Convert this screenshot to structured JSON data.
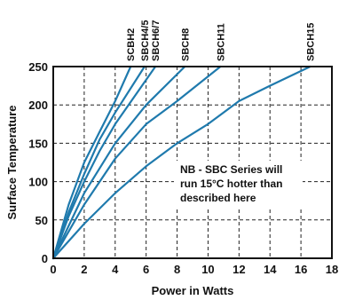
{
  "chart_data": {
    "type": "line",
    "xlabel": "Power in Watts",
    "ylabel": "Surface Temperature",
    "xlim": [
      0,
      18
    ],
    "ylim": [
      0,
      250
    ],
    "xticks": [
      "0",
      "2",
      "4",
      "6",
      "8",
      "10",
      "12",
      "14",
      "16",
      "18"
    ],
    "yticks": [
      "0",
      "50",
      "100",
      "150",
      "200",
      "250"
    ],
    "grid": true,
    "line_color": "#1f7aad",
    "note": [
      "NB - SBC Series will",
      "run 15°C hotter than",
      "described here"
    ],
    "series": [
      {
        "name": "SCBH2",
        "x": [
          0,
          1,
          2,
          3,
          4,
          5
        ],
        "y": [
          0,
          70,
          125,
          165,
          205,
          250
        ]
      },
      {
        "name": "SBCH4/5",
        "x": [
          0,
          1,
          2,
          3,
          4,
          5.9
        ],
        "y": [
          0,
          60,
          110,
          155,
          190,
          250
        ]
      },
      {
        "name": "SBCH6/7",
        "x": [
          0,
          1,
          2,
          3,
          4,
          6.6
        ],
        "y": [
          0,
          55,
          100,
          140,
          175,
          250
        ]
      },
      {
        "name": "SBCH8",
        "x": [
          0,
          2,
          4,
          6,
          8.5
        ],
        "y": [
          0,
          85,
          150,
          200,
          250
        ]
      },
      {
        "name": "SBCH11",
        "x": [
          0,
          2,
          4,
          6,
          8,
          10.8
        ],
        "y": [
          0,
          70,
          130,
          175,
          205,
          250
        ]
      },
      {
        "name": "SBCH15",
        "x": [
          0,
          2,
          4,
          6,
          8,
          10,
          12,
          14,
          16.6
        ],
        "y": [
          0,
          45,
          85,
          120,
          150,
          175,
          205,
          225,
          250
        ]
      }
    ]
  }
}
